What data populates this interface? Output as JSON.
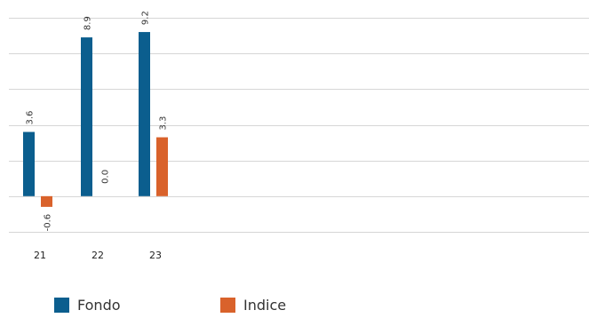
{
  "colors": {
    "fondo": "#0b5e8e",
    "indice": "#d9622b",
    "grid": "#d6d6d6"
  },
  "chart_data": {
    "type": "bar",
    "categories": [
      "21",
      "22",
      "23"
    ],
    "series": [
      {
        "name": "Fondo",
        "values": [
          3.6,
          8.9,
          9.2
        ],
        "labels": [
          "3.6",
          "8.9",
          "9.2"
        ]
      },
      {
        "name": "Indice",
        "values": [
          -0.6,
          0.0,
          3.3
        ],
        "labels": [
          "-0.6",
          "0.0",
          "3.3"
        ]
      }
    ],
    "ylim": [
      -2,
      10
    ],
    "grid": true,
    "legend": "bottom-left"
  }
}
